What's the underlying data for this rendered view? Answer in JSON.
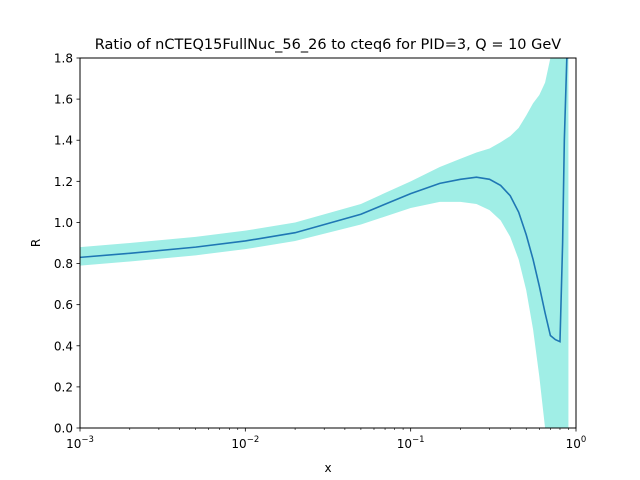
{
  "chart_data": {
    "type": "line",
    "title": "Ratio of nCTEQ15FullNuc_56_26 to cteq6 for PID=3, Q = 10 GeV",
    "xlabel": "x",
    "ylabel": "R",
    "x_scale": "log",
    "xlim": [
      0.001,
      1
    ],
    "ylim": [
      0.0,
      1.8
    ],
    "grid": false,
    "x_ticks": [
      {
        "value": 0.001,
        "base": "10",
        "exp": "−3"
      },
      {
        "value": 0.01,
        "base": "10",
        "exp": "−2"
      },
      {
        "value": 0.1,
        "base": "10",
        "exp": "−1"
      },
      {
        "value": 1,
        "base": "10",
        "exp": "0"
      }
    ],
    "y_ticks": [
      "0.0",
      "0.2",
      "0.4",
      "0.6",
      "0.8",
      "1.0",
      "1.2",
      "1.4",
      "1.6",
      "1.8"
    ],
    "colors": {
      "line": "#1f77b4",
      "band": "#a0eee6"
    },
    "series": [
      {
        "kind": "central",
        "x": [
          0.001,
          0.002,
          0.005,
          0.01,
          0.02,
          0.05,
          0.1,
          0.15,
          0.2,
          0.25,
          0.3,
          0.35,
          0.4,
          0.45,
          0.5,
          0.55,
          0.6,
          0.65,
          0.7,
          0.75,
          0.8,
          0.83,
          0.85,
          0.88,
          0.9
        ],
        "y": [
          0.83,
          0.85,
          0.88,
          0.91,
          0.95,
          1.04,
          1.14,
          1.19,
          1.21,
          1.22,
          1.21,
          1.18,
          1.13,
          1.05,
          0.94,
          0.82,
          0.69,
          0.56,
          0.45,
          0.43,
          0.42,
          0.9,
          1.4,
          1.8,
          1.8
        ]
      },
      {
        "kind": "uncertainty-band",
        "x": [
          0.001,
          0.002,
          0.005,
          0.01,
          0.02,
          0.05,
          0.1,
          0.15,
          0.2,
          0.25,
          0.3,
          0.35,
          0.4,
          0.45,
          0.5,
          0.55,
          0.6,
          0.65,
          0.7,
          0.75,
          0.8,
          0.85,
          0.9
        ],
        "lower": [
          0.79,
          0.81,
          0.84,
          0.87,
          0.91,
          0.99,
          1.07,
          1.1,
          1.1,
          1.09,
          1.06,
          1.01,
          0.93,
          0.82,
          0.67,
          0.48,
          0.25,
          0.0,
          0.0,
          0.0,
          0.0,
          0.0,
          0.0
        ],
        "upper": [
          0.88,
          0.9,
          0.93,
          0.96,
          1.0,
          1.09,
          1.2,
          1.27,
          1.31,
          1.34,
          1.36,
          1.39,
          1.42,
          1.46,
          1.52,
          1.58,
          1.62,
          1.68,
          1.8,
          1.8,
          1.8,
          1.8,
          1.8
        ]
      }
    ]
  }
}
